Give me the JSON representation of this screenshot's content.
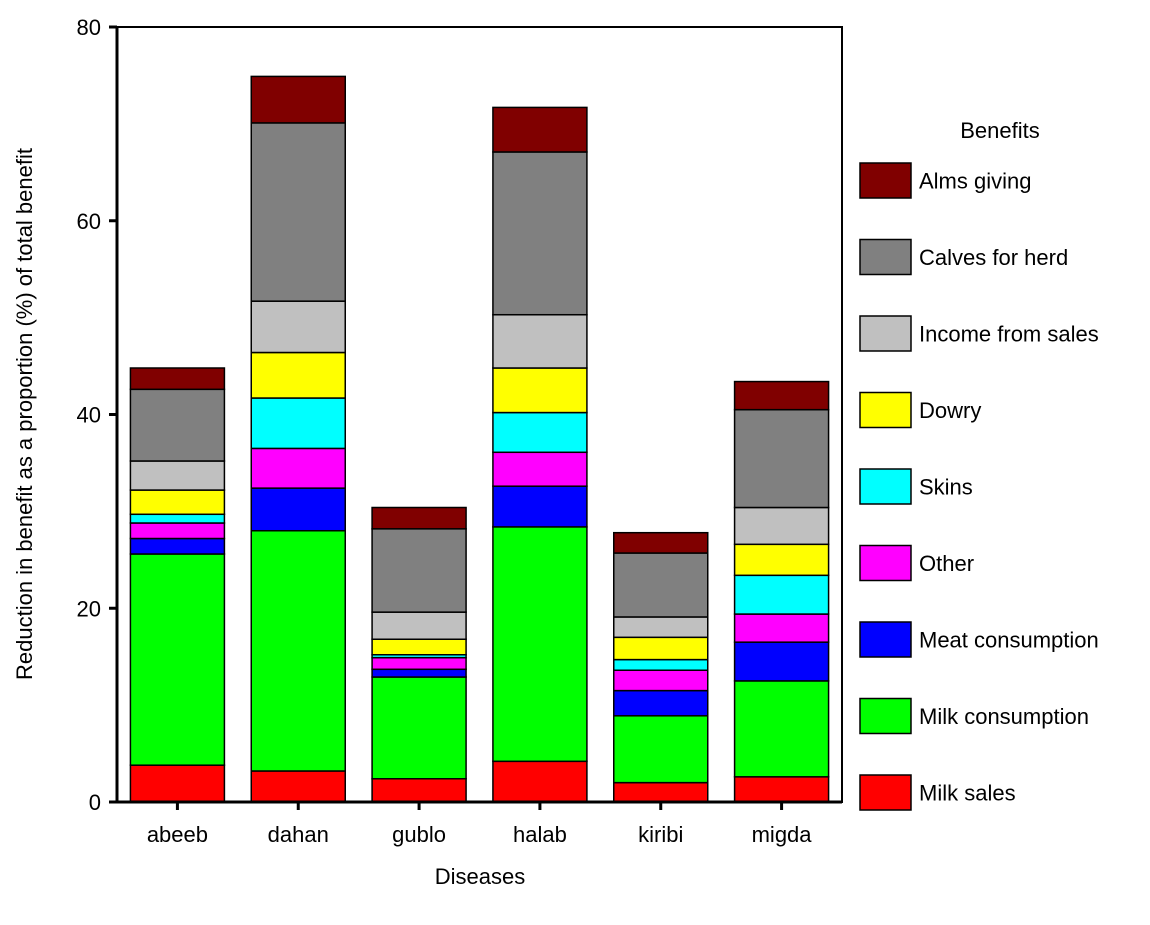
{
  "chart_data": {
    "type": "bar",
    "stacked": true,
    "xlabel": "Diseases",
    "ylabel": "Reduction in benefit as a proportion (%) of total benefit",
    "ylim": [
      0,
      80
    ],
    "yticks": [
      0,
      20,
      40,
      60,
      80
    ],
    "grid": false,
    "legend_title": "Benefits",
    "legend_position": "right",
    "categories": [
      "abeeb",
      "dahan",
      "gublo",
      "halab",
      "kiribi",
      "migda"
    ],
    "series": [
      {
        "name": "Milk sales",
        "color": "#ff0000",
        "values": [
          3.8,
          3.2,
          2.4,
          4.2,
          2.0,
          2.6
        ]
      },
      {
        "name": "Milk consumption",
        "color": "#00ff00",
        "values": [
          21.8,
          24.8,
          10.5,
          24.2,
          6.9,
          9.9
        ]
      },
      {
        "name": "Meat consumption",
        "color": "#0000ff",
        "values": [
          1.6,
          4.4,
          0.8,
          4.2,
          2.6,
          4.0
        ]
      },
      {
        "name": "Other",
        "color": "#ff00ff",
        "values": [
          1.6,
          4.1,
          1.2,
          3.5,
          2.1,
          2.9
        ]
      },
      {
        "name": "Skins",
        "color": "#00ffff",
        "values": [
          0.9,
          5.2,
          0.3,
          4.1,
          1.1,
          4.0
        ]
      },
      {
        "name": "Dowry",
        "color": "#ffff00",
        "values": [
          2.5,
          4.7,
          1.6,
          4.6,
          2.3,
          3.2
        ]
      },
      {
        "name": "Income from sales",
        "color": "#c0c0c0",
        "values": [
          3.0,
          5.3,
          2.8,
          5.5,
          2.1,
          3.8
        ]
      },
      {
        "name": "Calves for herd",
        "color": "#808080",
        "values": [
          7.4,
          18.4,
          8.6,
          16.8,
          6.6,
          10.1
        ]
      },
      {
        "name": "Alms giving",
        "color": "#800000",
        "values": [
          2.2,
          4.8,
          2.2,
          4.6,
          2.1,
          2.9
        ]
      }
    ]
  }
}
